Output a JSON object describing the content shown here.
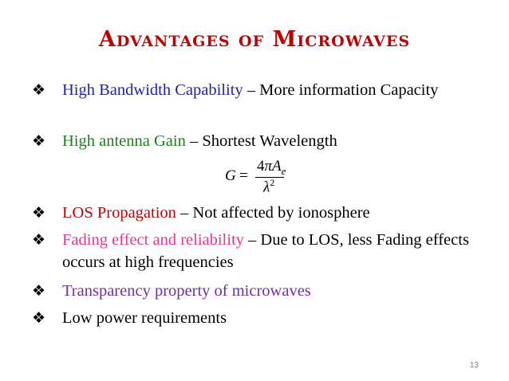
{
  "slide": {
    "title": "Advantages of Microwaves",
    "bullet_icon": "diamond-bullet-icon",
    "bullets": [
      {
        "highlight": "High Bandwidth Capability",
        "highlight_color": "#1f1fa8",
        "rest": " – More information Capacity"
      },
      {
        "highlight": "High antenna Gain",
        "highlight_color": "#1e7b1e",
        "rest": " – Shortest Wavelength"
      },
      {
        "highlight": "LOS Propagation",
        "highlight_color": "#c00000",
        "rest": " – Not affected by ionosphere"
      },
      {
        "highlight": "Fading effect and reliability",
        "highlight_color": "#e8368f",
        "rest": " – Due to LOS, less Fading effects occurs at high frequencies"
      },
      {
        "highlight": "Transparency property of microwaves",
        "highlight_color": "#7030a0",
        "rest": ""
      },
      {
        "highlight": "",
        "highlight_color": "#000000",
        "rest": "Low power requirements"
      }
    ],
    "formula": {
      "lhs": "G",
      "equals": "=",
      "num_coef": "4",
      "num_pi": "π",
      "num_var": "A",
      "num_sub": "e",
      "den_var": "λ",
      "den_sup": "2"
    },
    "page_number": "13"
  }
}
